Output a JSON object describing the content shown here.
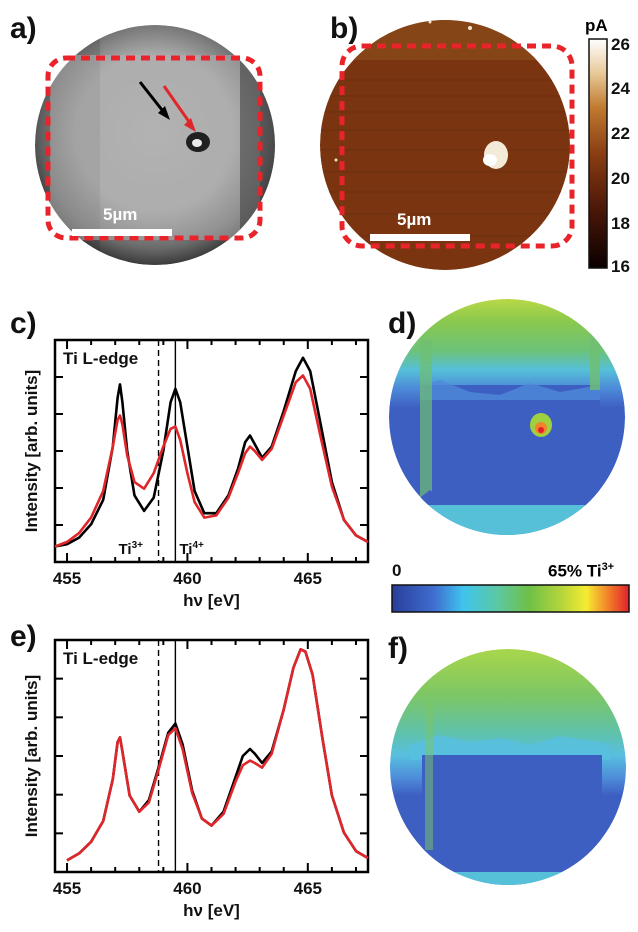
{
  "figure": {
    "panels": {
      "a": {
        "label": "a)",
        "scale_bar": "5µm"
      },
      "b": {
        "label": "b)",
        "scale_bar": "5µm",
        "colorbar": {
          "unit": "pA",
          "ticks": [
            "26",
            "24",
            "22",
            "20",
            "18",
            "16"
          ]
        }
      },
      "c": {
        "label": "c)"
      },
      "d": {
        "label": "d)",
        "colorbar": {
          "min_label": "0",
          "max_label": "65% Ti",
          "max_superscript": "3+"
        }
      },
      "e": {
        "label": "e)"
      },
      "f": {
        "label": "f)"
      }
    },
    "colors": {
      "dashed_frame": "#e8242a",
      "spectrum_black": "#000000",
      "spectrum_red": "#e0262a",
      "arrow_black": "#000000",
      "arrow_red": "#e0262a"
    }
  },
  "chart_data": [
    {
      "id": "c",
      "type": "line",
      "annotation": "Ti L-edge",
      "xlabel": "hν [eV]",
      "ylabel": "Intensity [arb. units]",
      "xlim": [
        454.5,
        467.5
      ],
      "ylim": [
        0,
        1.0
      ],
      "xticks": [
        455,
        460,
        465
      ],
      "xtick_labels": [
        "455",
        "460",
        "465"
      ],
      "vlines": [
        {
          "x": 458.8,
          "style": "dashed",
          "label": "Ti",
          "superscript": "3+"
        },
        {
          "x": 459.5,
          "style": "solid",
          "label": "Ti",
          "superscript": "4+"
        }
      ],
      "series": [
        {
          "color": "#000000",
          "x": [
            454.5,
            455.0,
            455.5,
            456.0,
            456.5,
            456.9,
            457.1,
            457.2,
            457.3,
            457.5,
            457.8,
            458.2,
            458.6,
            459.0,
            459.3,
            459.5,
            459.7,
            460.0,
            460.3,
            460.7,
            461.2,
            461.7,
            462.1,
            462.4,
            462.6,
            462.8,
            463.1,
            463.5,
            464.0,
            464.5,
            464.8,
            465.1,
            465.5,
            466.0,
            466.5,
            467.0,
            467.5
          ],
          "y": [
            0.07,
            0.08,
            0.11,
            0.17,
            0.28,
            0.52,
            0.74,
            0.8,
            0.72,
            0.5,
            0.3,
            0.23,
            0.29,
            0.5,
            0.72,
            0.78,
            0.72,
            0.52,
            0.32,
            0.22,
            0.22,
            0.3,
            0.42,
            0.54,
            0.57,
            0.53,
            0.47,
            0.52,
            0.68,
            0.86,
            0.92,
            0.86,
            0.64,
            0.36,
            0.19,
            0.12,
            0.09
          ]
        },
        {
          "color": "#e0262a",
          "x": [
            454.5,
            455.0,
            455.5,
            456.0,
            456.5,
            456.9,
            457.1,
            457.2,
            457.3,
            457.5,
            457.8,
            458.2,
            458.6,
            459.0,
            459.3,
            459.5,
            459.7,
            460.0,
            460.3,
            460.7,
            461.2,
            461.7,
            462.1,
            462.4,
            462.6,
            462.8,
            463.1,
            463.5,
            464.0,
            464.5,
            464.8,
            465.1,
            465.5,
            466.0,
            466.5,
            467.0,
            467.5
          ],
          "y": [
            0.07,
            0.09,
            0.13,
            0.2,
            0.32,
            0.52,
            0.64,
            0.66,
            0.62,
            0.48,
            0.36,
            0.33,
            0.4,
            0.52,
            0.6,
            0.61,
            0.55,
            0.4,
            0.27,
            0.2,
            0.21,
            0.29,
            0.4,
            0.49,
            0.52,
            0.5,
            0.46,
            0.51,
            0.66,
            0.81,
            0.84,
            0.78,
            0.58,
            0.34,
            0.19,
            0.12,
            0.09
          ]
        }
      ]
    },
    {
      "id": "e",
      "type": "line",
      "annotation": "Ti L-edge",
      "xlabel": "hν [eV]",
      "ylabel": "Intensity [arb. units]",
      "xlim": [
        454.5,
        467.5
      ],
      "ylim": [
        0,
        1.0
      ],
      "xticks": [
        455,
        460,
        465
      ],
      "xtick_labels": [
        "455",
        "460",
        "465"
      ],
      "vlines": [
        {
          "x": 458.8,
          "style": "dashed"
        },
        {
          "x": 459.5,
          "style": "solid"
        }
      ],
      "series": [
        {
          "color": "#000000",
          "x": [
            455.0,
            455.5,
            456.0,
            456.5,
            456.9,
            457.1,
            457.2,
            457.3,
            457.6,
            458.0,
            458.4,
            458.8,
            459.2,
            459.5,
            459.8,
            460.2,
            460.6,
            461.0,
            461.5,
            462.0,
            462.3,
            462.6,
            462.8,
            463.1,
            463.5,
            464.0,
            464.4,
            464.7,
            464.9,
            465.2,
            465.6,
            466.0,
            466.5,
            467.0,
            467.5
          ],
          "y": [
            0.05,
            0.08,
            0.13,
            0.22,
            0.4,
            0.56,
            0.58,
            0.52,
            0.33,
            0.26,
            0.31,
            0.45,
            0.6,
            0.64,
            0.55,
            0.35,
            0.23,
            0.2,
            0.26,
            0.41,
            0.5,
            0.53,
            0.51,
            0.47,
            0.52,
            0.7,
            0.88,
            0.96,
            0.95,
            0.85,
            0.58,
            0.33,
            0.17,
            0.09,
            0.06
          ]
        },
        {
          "color": "#e0262a",
          "x": [
            455.0,
            455.5,
            456.0,
            456.5,
            456.9,
            457.1,
            457.2,
            457.3,
            457.6,
            458.0,
            458.4,
            458.8,
            459.2,
            459.5,
            459.8,
            460.2,
            460.6,
            461.0,
            461.5,
            462.0,
            462.3,
            462.6,
            462.8,
            463.1,
            463.5,
            464.0,
            464.4,
            464.7,
            464.9,
            465.2,
            465.6,
            466.0,
            466.5,
            467.0,
            467.5
          ],
          "y": [
            0.05,
            0.08,
            0.13,
            0.22,
            0.4,
            0.56,
            0.58,
            0.52,
            0.33,
            0.26,
            0.3,
            0.44,
            0.59,
            0.62,
            0.53,
            0.34,
            0.23,
            0.2,
            0.25,
            0.39,
            0.46,
            0.48,
            0.47,
            0.45,
            0.51,
            0.7,
            0.88,
            0.96,
            0.95,
            0.85,
            0.58,
            0.33,
            0.17,
            0.09,
            0.06
          ]
        }
      ]
    }
  ]
}
